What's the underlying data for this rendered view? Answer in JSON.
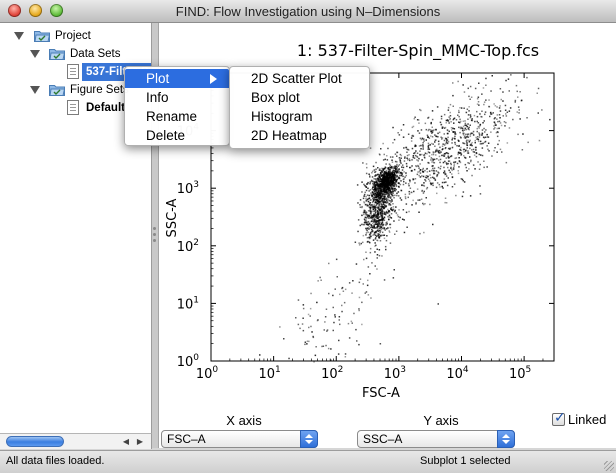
{
  "window": {
    "title": "FIND: Flow Investigation using N–Dimensions"
  },
  "tree": {
    "project": "Project",
    "data_sets": "Data Sets",
    "data_file": "537-Filter-Spin_MMC-Top.fcs",
    "figure_sets": "Figure Sets",
    "default_figure": "Default"
  },
  "context_menu": {
    "items": [
      "Plot",
      "Info",
      "Rename",
      "Delete"
    ],
    "submenu": [
      "2D Scatter Plot",
      "Box plot",
      "Histogram",
      "2D Heatmap"
    ]
  },
  "plot": {
    "title": "1: 537-Filter-Spin_MMC-Top.fcs",
    "xlabel": "FSC-A",
    "ylabel": "SSC-A"
  },
  "chart_data": {
    "type": "scatter",
    "title": "1: 537-Filter-Spin_MMC-Top.fcs",
    "xlabel": "FSC-A",
    "ylabel": "SSC-A",
    "xscale": "log",
    "yscale": "log",
    "xlim": [
      1,
      300000
    ],
    "ylim": [
      1,
      100000
    ],
    "x_ticks": [
      {
        "base": "10",
        "exp": "0"
      },
      {
        "base": "10",
        "exp": "1"
      },
      {
        "base": "10",
        "exp": "2"
      },
      {
        "base": "10",
        "exp": "3"
      },
      {
        "base": "10",
        "exp": "4"
      },
      {
        "base": "10",
        "exp": "5"
      }
    ],
    "y_ticks": [
      {
        "base": "10",
        "exp": "0"
      },
      {
        "base": "10",
        "exp": "1"
      },
      {
        "base": "10",
        "exp": "2"
      },
      {
        "base": "10",
        "exp": "3"
      },
      {
        "base": "10",
        "exp": "4"
      }
    ],
    "grid": false,
    "point_color": "#000000",
    "clusters": [
      {
        "center_x": 600,
        "center_y": 1300,
        "spread_x_decades": 0.1,
        "spread_y_decades": 0.12,
        "count": 900
      },
      {
        "center_x": 450,
        "center_y": 400,
        "spread_x_decades": 0.12,
        "spread_y_decades": 0.3,
        "count": 700
      },
      {
        "center_x": 3000,
        "center_y": 3000,
        "spread_x_decades": 0.45,
        "spread_y_decades": 0.4,
        "count": 600
      },
      {
        "center_x": 15000,
        "center_y": 10000,
        "spread_x_decades": 0.45,
        "spread_y_decades": 0.35,
        "count": 350
      },
      {
        "center_x": 80,
        "center_y": 4,
        "spread_x_decades": 0.4,
        "spread_y_decades": 0.5,
        "count": 120
      }
    ]
  },
  "controls": {
    "x_axis_label": "X axis",
    "y_axis_label": "Y axis",
    "x_axis_value": "FSC–A",
    "y_axis_value": "SSC–A",
    "linked_label": "Linked",
    "linked_checked": true
  },
  "status": {
    "left": "All data files loaded.",
    "right": "Subplot 1 selected"
  },
  "colors": {
    "selection": "#3875d7",
    "menu_highlight": "#2c6de0"
  },
  "icons": {
    "folder": "folder-icon",
    "file": "file-icon"
  }
}
